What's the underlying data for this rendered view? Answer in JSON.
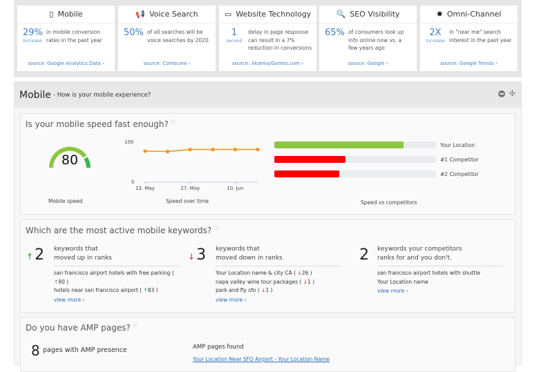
{
  "stats": [
    {
      "icon": "mobile-phone-icon",
      "title": "Mobile",
      "value": "29%",
      "unit": "increase",
      "text": "in mobile conversion rates in the past year",
      "source": "source: Google Analytics Data ›"
    },
    {
      "icon": "megaphone-icon",
      "title": "Voice Search",
      "value": "50%",
      "unit": "",
      "text": "of all searches will be voice searches by 2020",
      "source": "source: Comscore ›"
    },
    {
      "icon": "monitor-icon",
      "title": "Website Technology",
      "value": "1",
      "unit": "second",
      "text": "delay in page response can result in a 7% reduction in conversions",
      "source": "source: Akamia/Gomez.com ›"
    },
    {
      "icon": "search-icon",
      "title": "SEO Visibility",
      "value": "65%",
      "unit": "",
      "text": "of consumers look up info online now vs. a few years ago",
      "source": "source: Google ›"
    },
    {
      "icon": "badge-icon",
      "title": "Omni-Channel",
      "value": "2X",
      "unit": "increase",
      "text": "in \"near me\" search interest in the past year",
      "source": "source: Google Trends ›"
    }
  ],
  "panel": {
    "title": "Mobile",
    "subtitle": "- How is your mobile experience?"
  },
  "speed": {
    "heading": "Is your mobile speed fast enough?",
    "gauge_value": "80",
    "gauge_label": "Mobile speed",
    "line_label": "Speed over time",
    "bars_label": "Speed vs competitors"
  },
  "chart_data": [
    {
      "type": "line",
      "xlabel": "Speed over time",
      "ylim": [
        0,
        100
      ],
      "yticks": [
        "0",
        "100"
      ],
      "xticks": [
        "13. May",
        "27. May",
        "10. Jun"
      ],
      "x": [
        "13. May",
        "20. May",
        "27. May",
        "3. Jun",
        "10. Jun",
        "17. Jun"
      ],
      "values": [
        76,
        75,
        80,
        80,
        80,
        80
      ],
      "color": "#f7941d"
    },
    {
      "type": "bar",
      "xlabel": "Speed vs competitors",
      "categories": [
        "Your Location",
        "#1 Competitor",
        "#2 Competitor"
      ],
      "values": [
        80,
        44,
        40
      ],
      "xlim": [
        0,
        100
      ],
      "colors": [
        "#8dc63f",
        "#ff0000",
        "#ff0000"
      ]
    }
  ],
  "keywords": {
    "heading": "Which are the most active mobile keywords?",
    "groups": [
      {
        "count": "2",
        "arrow": "↑",
        "title1": "keywords that",
        "title2": "moved up in ranks",
        "items": [
          "san francisco airport hotels with free parking ( ↑90 )",
          "hotels near san francisco airport ( ↑83 )"
        ],
        "more": "view more ›"
      },
      {
        "count": "3",
        "arrow": "↓",
        "title1": "keywords that",
        "title2": "moved down in ranks",
        "items": [
          "Your Location name & city CA ( ↓26 )",
          "napa valley wine tour packages ( ↓1 )",
          "park and fly sfo ( ↓1 )"
        ],
        "more": "view more ›"
      },
      {
        "count": "2",
        "arrow": "",
        "title1": "keywords your competitors",
        "title2": "ranks for and you don't.",
        "items": [
          "san francisco airport hotels with shuttle",
          "Your Location name"
        ],
        "more": "view more ›"
      }
    ]
  },
  "amp": {
    "heading": "Do you have AMP pages?",
    "count": "8",
    "count_label": "pages with AMP presence",
    "found_label": "AMP pages found",
    "first_link": "Your Location Near SFO Airport - Your Location Name"
  }
}
